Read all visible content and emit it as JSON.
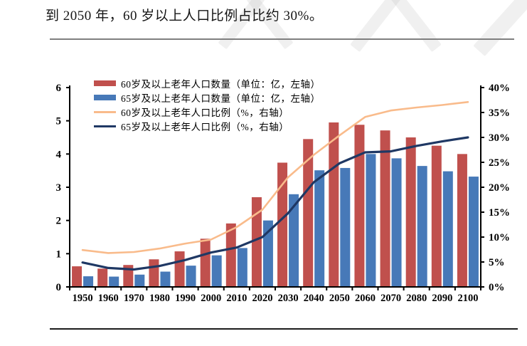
{
  "page": {
    "caption": "到 2050 年，60 岁以上人口比例占比约 30%。"
  },
  "chart_data": {
    "type": "bar",
    "subtype": "combo-bar-line-dual-axis",
    "categories": [
      "1950",
      "1960",
      "1970",
      "1980",
      "1990",
      "2000",
      "2010",
      "2020",
      "2030",
      "2040",
      "2050",
      "2060",
      "2070",
      "2080",
      "2090",
      "2100"
    ],
    "series": [
      {
        "name": "60岁及以上老年人口数量（单位：亿，左轴）",
        "type": "bar",
        "axis": "left",
        "color": "#c0504d",
        "values": [
          0.62,
          0.55,
          0.66,
          0.83,
          1.07,
          1.45,
          1.91,
          2.7,
          3.74,
          4.45,
          4.95,
          4.88,
          4.71,
          4.5,
          4.25,
          4.0
        ]
      },
      {
        "name": "65岁及以上老年人口数量（单位：亿，左轴）",
        "type": "bar",
        "axis": "left",
        "color": "#4779b8",
        "values": [
          0.32,
          0.31,
          0.37,
          0.46,
          0.64,
          0.95,
          1.17,
          2.0,
          2.79,
          3.51,
          3.58,
          4.0,
          3.87,
          3.64,
          3.48,
          3.32
        ]
      },
      {
        "name": "60岁及以上老年人口比例（%，右轴）",
        "type": "line",
        "axis": "right",
        "color": "#f9bb8b",
        "values": [
          7.4,
          6.8,
          7.0,
          7.7,
          8.7,
          9.5,
          12.0,
          15.5,
          22.0,
          26.5,
          30.4,
          34.1,
          35.4,
          36.0,
          36.5,
          37.1
        ]
      },
      {
        "name": "65岁及以上老年人口比例（%，右轴）",
        "type": "line",
        "axis": "right",
        "color": "#1f3864",
        "values": [
          4.9,
          3.8,
          3.5,
          4.2,
          5.4,
          6.9,
          7.9,
          10.0,
          14.8,
          21.0,
          24.8,
          27.0,
          27.2,
          28.3,
          29.2,
          30.0
        ]
      }
    ],
    "left_axis": {
      "min": 0,
      "max": 6,
      "step": 1,
      "ticks": [
        "0",
        "1",
        "2",
        "3",
        "4",
        "5",
        "6"
      ]
    },
    "right_axis": {
      "min": 0,
      "max": 40,
      "step": 5,
      "ticks": [
        "0%",
        "5%",
        "10%",
        "15%",
        "20%",
        "25%",
        "30%",
        "35%",
        "40%"
      ]
    },
    "legend_position": "top-left",
    "grid": false,
    "title": "",
    "xlabel": "",
    "ylabel": ""
  }
}
